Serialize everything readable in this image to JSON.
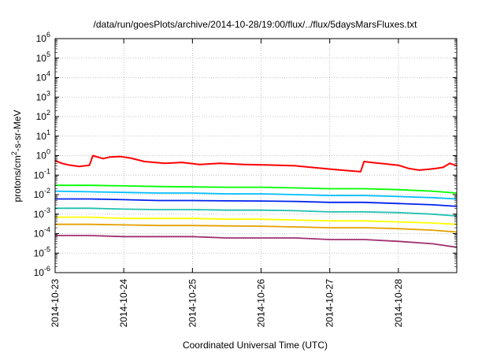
{
  "chart_data": {
    "type": "line",
    "title": "/data/run/goesPlots/archive/2014-10-28/19:00/flux/../flux/5daysMarsFluxes.txt",
    "xlabel": "Coordinated Universal Time (UTC)",
    "ylabel_parts": [
      "protons/cm",
      "2",
      "-s-sr-MeV"
    ],
    "x_ticks": [
      "2014-10-23",
      "2014-10-24",
      "2014-10-25",
      "2014-10-26",
      "2014-10-27",
      "2014-10-28"
    ],
    "y_ticks": [
      {
        "exp": -6
      },
      {
        "exp": -5
      },
      {
        "exp": -4
      },
      {
        "exp": -3
      },
      {
        "exp": -2
      },
      {
        "exp": -1
      },
      {
        "exp": 0
      },
      {
        "exp": 1
      },
      {
        "exp": 2
      },
      {
        "exp": 3
      },
      {
        "exp": 4
      },
      {
        "exp": 5
      },
      {
        "exp": 6
      }
    ],
    "y_scale": "log",
    "ylim": [
      1e-06,
      1000000.0
    ],
    "xlim_days": [
      0,
      5.85
    ],
    "grid": true,
    "series": [
      {
        "color": "#ff0000",
        "x": [
          0.0,
          0.1,
          0.2,
          0.35,
          0.5,
          0.55,
          0.7,
          0.8,
          0.95,
          1.1,
          1.3,
          1.6,
          1.85,
          2.1,
          2.4,
          2.75,
          3.1,
          3.5,
          3.9,
          4.1,
          4.45,
          4.5,
          4.6,
          4.8,
          5.0,
          5.15,
          5.3,
          5.45,
          5.55,
          5.65,
          5.75,
          5.85
        ],
        "y": [
          0.55,
          0.4,
          0.33,
          0.28,
          0.32,
          1.0,
          0.7,
          0.85,
          0.9,
          0.75,
          0.5,
          0.4,
          0.45,
          0.35,
          0.4,
          0.35,
          0.33,
          0.3,
          0.22,
          0.19,
          0.15,
          0.5,
          0.45,
          0.38,
          0.32,
          0.22,
          0.18,
          0.2,
          0.22,
          0.25,
          0.4,
          0.3
        ]
      },
      {
        "color": "#00ff00",
        "x": [
          0.0,
          0.5,
          1.0,
          1.5,
          2.0,
          2.5,
          3.0,
          3.5,
          4.0,
          4.5,
          5.0,
          5.5,
          5.85
        ],
        "y": [
          0.03,
          0.03,
          0.028,
          0.026,
          0.025,
          0.024,
          0.024,
          0.022,
          0.02,
          0.02,
          0.018,
          0.015,
          0.012
        ]
      },
      {
        "color": "#00bfff",
        "x": [
          0.0,
          0.5,
          1.0,
          1.5,
          2.0,
          2.5,
          3.0,
          3.5,
          4.0,
          4.5,
          5.0,
          5.5,
          5.85
        ],
        "y": [
          0.015,
          0.014,
          0.013,
          0.012,
          0.012,
          0.011,
          0.011,
          0.01,
          0.009,
          0.009,
          0.008,
          0.007,
          0.006
        ]
      },
      {
        "color": "#0022ee",
        "x": [
          0.0,
          0.5,
          1.0,
          1.5,
          2.0,
          2.5,
          3.0,
          3.5,
          4.0,
          4.5,
          5.0,
          5.5,
          5.85
        ],
        "y": [
          0.006,
          0.006,
          0.0055,
          0.005,
          0.005,
          0.0048,
          0.0047,
          0.0045,
          0.004,
          0.004,
          0.0035,
          0.003,
          0.0025
        ]
      },
      {
        "color": "#20c0b0",
        "x": [
          0.0,
          0.5,
          1.0,
          1.5,
          2.0,
          2.5,
          3.0,
          3.5,
          4.0,
          4.5,
          5.0,
          5.5,
          5.85
        ],
        "y": [
          0.002,
          0.002,
          0.0018,
          0.0017,
          0.0017,
          0.0016,
          0.0016,
          0.0015,
          0.0013,
          0.0013,
          0.0012,
          0.001,
          0.0008
        ]
      },
      {
        "color": "#ffff00",
        "x": [
          0.0,
          0.5,
          1.0,
          1.5,
          2.0,
          2.5,
          3.0,
          3.5,
          4.0,
          4.5,
          5.0,
          5.5,
          5.85
        ],
        "y": [
          0.0007,
          0.0007,
          0.0006,
          0.0006,
          0.0006,
          0.00055,
          0.00055,
          0.0005,
          0.00045,
          0.00045,
          0.0004,
          0.00035,
          0.0003
        ]
      },
      {
        "color": "#e6a000",
        "x": [
          0.0,
          0.5,
          1.0,
          1.5,
          2.0,
          2.5,
          3.0,
          3.5,
          4.0,
          4.5,
          5.0,
          5.5,
          5.85
        ],
        "y": [
          0.0003,
          0.0003,
          0.00028,
          0.00026,
          0.00026,
          0.00025,
          0.00024,
          0.00022,
          0.0002,
          0.0002,
          0.00018,
          0.00015,
          0.00012
        ]
      },
      {
        "color": "#a03070",
        "x": [
          0.0,
          0.5,
          1.0,
          1.5,
          2.0,
          2.5,
          3.0,
          3.5,
          4.0,
          4.5,
          5.0,
          5.5,
          5.85
        ],
        "y": [
          8e-05,
          8e-05,
          7e-05,
          7e-05,
          7e-05,
          6e-05,
          6e-05,
          6e-05,
          5e-05,
          5e-05,
          4e-05,
          3e-05,
          2e-05
        ]
      }
    ]
  }
}
